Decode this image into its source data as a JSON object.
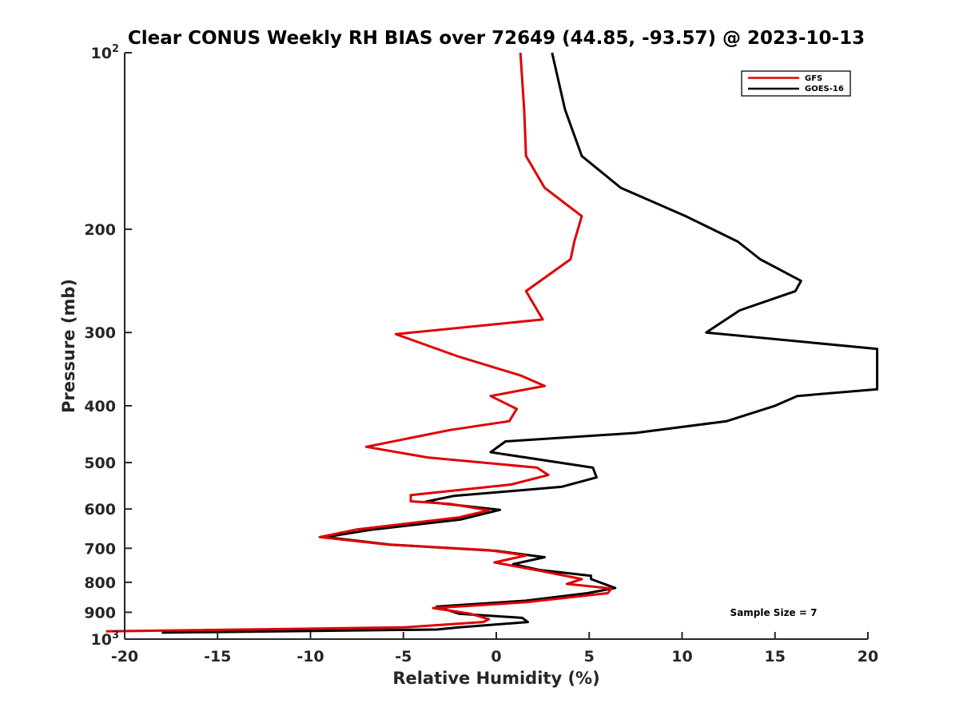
{
  "chart_data": {
    "type": "line",
    "title": "Clear CONUS Weekly RH BIAS over 72649 (44.85, -93.57) @ 2023-10-13",
    "xlabel": "Relative Humidity (%)",
    "ylabel": "Pressure (mb)",
    "xlim": [
      -20,
      20
    ],
    "ylim": [
      100,
      1000
    ],
    "y_scale": "log",
    "y_reversed": true,
    "xticks": [
      -20,
      -15,
      -10,
      -5,
      0,
      5,
      10,
      15,
      20
    ],
    "xtick_labels": [
      "-20",
      "-15",
      "-10",
      "-5",
      "0",
      "5",
      "10",
      "15",
      "20"
    ],
    "yticks": [
      {
        "value": 100,
        "label": "10",
        "sup": "2"
      },
      {
        "value": 200,
        "label": "200",
        "sup": ""
      },
      {
        "value": 300,
        "label": "300",
        "sup": ""
      },
      {
        "value": 400,
        "label": "400",
        "sup": ""
      },
      {
        "value": 500,
        "label": "500",
        "sup": ""
      },
      {
        "value": 600,
        "label": "600",
        "sup": ""
      },
      {
        "value": 700,
        "label": "700",
        "sup": ""
      },
      {
        "value": 800,
        "label": "800",
        "sup": ""
      },
      {
        "value": 900,
        "label": "900",
        "sup": ""
      },
      {
        "value": 1000,
        "label": "10",
        "sup": "3"
      }
    ],
    "legend_position": "top-right",
    "annotation": "Sample Size = 7",
    "series": [
      {
        "name": "GFS",
        "color": "#e00000",
        "points": [
          [
            1.3,
            100
          ],
          [
            1.5,
            125
          ],
          [
            1.6,
            150
          ],
          [
            2.6,
            170
          ],
          [
            4.6,
            190
          ],
          [
            4.2,
            210
          ],
          [
            4.0,
            225
          ],
          [
            1.6,
            255
          ],
          [
            2.5,
            285
          ],
          [
            -5.4,
            302
          ],
          [
            -2.0,
            330
          ],
          [
            1.3,
            355
          ],
          [
            2.6,
            370
          ],
          [
            -0.3,
            385
          ],
          [
            1.1,
            405
          ],
          [
            0.7,
            425
          ],
          [
            -2.5,
            440
          ],
          [
            -7.0,
            470
          ],
          [
            -3.7,
            490
          ],
          [
            2.2,
            510
          ],
          [
            2.8,
            525
          ],
          [
            0.8,
            545
          ],
          [
            -4.6,
            568
          ],
          [
            -4.6,
            582
          ],
          [
            -2.5,
            588
          ],
          [
            -0.4,
            603
          ],
          [
            -2.0,
            620
          ],
          [
            -7.5,
            650
          ],
          [
            -9.5,
            670
          ],
          [
            -5.8,
            690
          ],
          [
            -0.4,
            705
          ],
          [
            1.6,
            720
          ],
          [
            -0.1,
            740
          ],
          [
            2.4,
            765
          ],
          [
            4.6,
            790
          ],
          [
            3.8,
            805
          ],
          [
            6.2,
            820
          ],
          [
            6.0,
            835
          ],
          [
            1.6,
            865
          ],
          [
            -3.4,
            885
          ],
          [
            -1.4,
            905
          ],
          [
            -0.4,
            925
          ],
          [
            -0.7,
            935
          ],
          [
            -5.0,
            955
          ],
          [
            -21.0,
            970
          ]
        ]
      },
      {
        "name": "GOES-16",
        "color": "#000000",
        "points": [
          [
            3.0,
            100
          ],
          [
            3.7,
            125
          ],
          [
            4.6,
            150
          ],
          [
            6.7,
            170
          ],
          [
            10.2,
            190
          ],
          [
            13.0,
            210
          ],
          [
            14.2,
            225
          ],
          [
            16.4,
            245
          ],
          [
            16.1,
            255
          ],
          [
            13.1,
            275
          ],
          [
            11.3,
            300
          ],
          [
            20.5,
            320
          ],
          [
            20.5,
            375
          ],
          [
            16.2,
            385
          ],
          [
            15.0,
            400
          ],
          [
            12.4,
            425
          ],
          [
            7.5,
            445
          ],
          [
            0.5,
            460
          ],
          [
            -0.3,
            480
          ],
          [
            5.2,
            510
          ],
          [
            5.4,
            530
          ],
          [
            3.5,
            550
          ],
          [
            -2.3,
            570
          ],
          [
            -3.8,
            583
          ],
          [
            0.2,
            602
          ],
          [
            -1.9,
            625
          ],
          [
            -6.6,
            650
          ],
          [
            -9.2,
            670
          ],
          [
            -5.7,
            690
          ],
          [
            0.0,
            707
          ],
          [
            2.6,
            725
          ],
          [
            0.9,
            745
          ],
          [
            2.3,
            762
          ],
          [
            5.1,
            780
          ],
          [
            5.1,
            790
          ],
          [
            6.4,
            818
          ],
          [
            4.9,
            835
          ],
          [
            1.6,
            860
          ],
          [
            -3.2,
            880
          ],
          [
            -2.0,
            905
          ],
          [
            1.4,
            920
          ],
          [
            1.7,
            935
          ],
          [
            -2.0,
            955
          ],
          [
            -3.2,
            963
          ],
          [
            -18.0,
            975
          ]
        ]
      }
    ]
  }
}
